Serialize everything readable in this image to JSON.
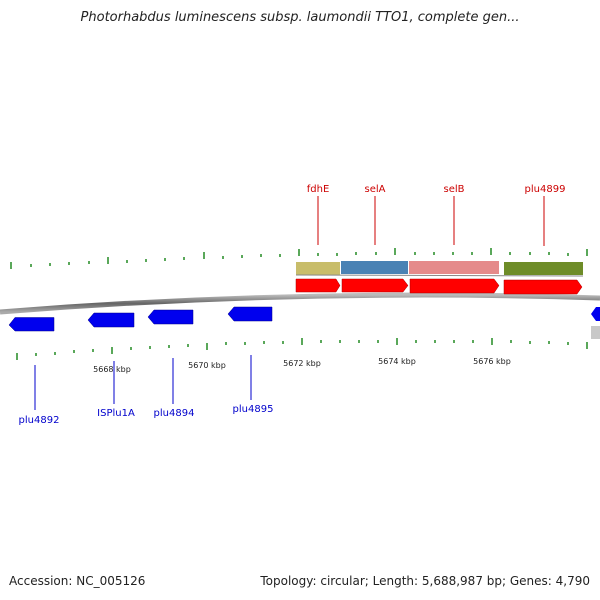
{
  "title": "Photorhabdus luminescens subsp. laumondii TTO1, complete gen...",
  "footer": {
    "accession": "Accession: NC_005126",
    "summary": "Topology: circular; Length: 5,688,987 bp; Genes: 4,790"
  },
  "axis": {
    "labels": [
      "5668 kbp",
      "5670 kbp",
      "5672 kbp",
      "5674 kbp",
      "5676 kbp"
    ]
  },
  "genes_forward": [
    {
      "name": "fdhE",
      "color": "#c8bd6a"
    },
    {
      "name": "selA",
      "color": "#4a82b4"
    },
    {
      "name": "selB",
      "color": "#e58a8a"
    },
    {
      "name": "plu4899",
      "color": "#6e8c28"
    }
  ],
  "genes_reverse": [
    {
      "name": "plu4892"
    },
    {
      "name": "ISPlu1A"
    },
    {
      "name": "plu4894"
    },
    {
      "name": "plu4895"
    }
  ],
  "colors": {
    "forward_label": "#cc0000",
    "reverse_label": "#0000cc",
    "forward_arrow": "#ff0000",
    "reverse_arrow": "#0000ee",
    "tick": "#228b22",
    "backbone": "#777777"
  }
}
